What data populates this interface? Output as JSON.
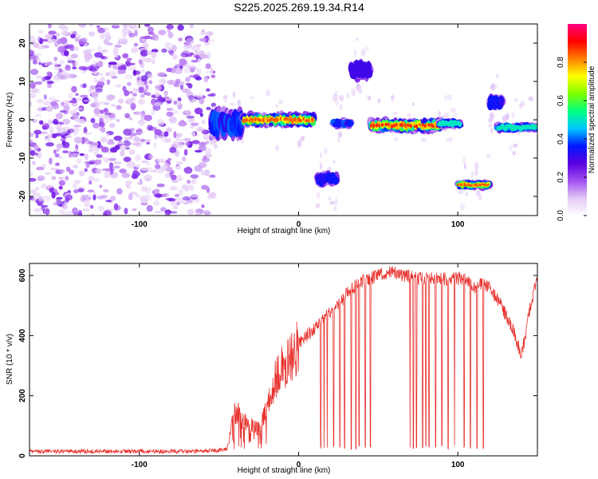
{
  "title": "S225.2025.269.19.34.R14",
  "colors": {
    "snr_line": "#e8302c",
    "axis": "#000000",
    "background": "#ffffff"
  },
  "chart_data": [
    {
      "type": "heatmap",
      "xlabel": "Height of straight line (km)",
      "ylabel": "Frequency (Hz)",
      "xlim": [
        -169,
        150
      ],
      "ylim": [
        -25,
        25
      ],
      "xticks": [
        -100,
        0,
        100
      ],
      "yticks": [
        -20,
        -10,
        0,
        10,
        20
      ],
      "colorbar": {
        "label": "Normalized spectral amplitude",
        "range": [
          0,
          1
        ],
        "ticks": [
          "0.0",
          "0.2",
          "0.4",
          "0.6",
          "0.8"
        ],
        "colors": [
          "#ffffff",
          "#e3c8f5",
          "#a050f0",
          "#5a00e0",
          "#0018ff",
          "#00c8ff",
          "#00ff80",
          "#80ff00",
          "#ffff00",
          "#ff8000",
          "#ff0000",
          "#ff0080"
        ]
      },
      "noise_region": {
        "x": [
          -169,
          -53
        ],
        "freq": [
          -25,
          25
        ]
      },
      "features": [
        {
          "x": [
            -55,
            -35
          ],
          "freq": [
            -4,
            2
          ],
          "peak_amp": 0.4
        },
        {
          "x": [
            -35,
            10
          ],
          "freq": [
            -1.5,
            1.5
          ],
          "peak_amp": 0.85
        },
        {
          "x": [
            12,
            24
          ],
          "freq": [
            -17,
            -14
          ],
          "peak_amp": 0.35
        },
        {
          "x": [
            22,
            33
          ],
          "freq": [
            -2,
            0
          ],
          "peak_amp": 0.4
        },
        {
          "x": [
            33,
            45
          ],
          "freq": [
            11,
            15
          ],
          "peak_amp": 0.3
        },
        {
          "x": [
            45,
            90
          ],
          "freq": [
            -3,
            0
          ],
          "peak_amp": 0.88
        },
        {
          "x": [
            88,
            102
          ],
          "freq": [
            -2,
            0
          ],
          "peak_amp": 0.5
        },
        {
          "x": [
            100,
            120
          ],
          "freq": [
            -18,
            -16
          ],
          "peak_amp": 0.85
        },
        {
          "x": [
            120,
            128
          ],
          "freq": [
            3,
            6
          ],
          "peak_amp": 0.35
        },
        {
          "x": [
            125,
            150
          ],
          "freq": [
            -3,
            -1
          ],
          "peak_amp": 0.5
        }
      ]
    },
    {
      "type": "line",
      "xlabel": "Height of straight line (km)",
      "ylabel": "SNR (10 * v/v)",
      "xlim": [
        -169,
        150
      ],
      "ylim": [
        0,
        640
      ],
      "xticks": [
        -100,
        0,
        100
      ],
      "yticks": [
        0,
        200,
        400,
        600
      ],
      "series": [
        {
          "name": "SNR",
          "x": [
            -169,
            -150,
            -120,
            -100,
            -80,
            -60,
            -45,
            -42,
            -40,
            -35,
            -30,
            -25,
            -20,
            -15,
            -10,
            -5,
            0,
            5,
            10,
            15,
            20,
            25,
            30,
            35,
            40,
            45,
            50,
            55,
            60,
            65,
            70,
            75,
            80,
            85,
            90,
            95,
            100,
            105,
            110,
            115,
            120,
            125,
            130,
            135,
            140,
            145,
            150
          ],
          "values": [
            15,
            15,
            15,
            15,
            15,
            15,
            20,
            100,
            150,
            120,
            100,
            90,
            150,
            250,
            300,
            330,
            370,
            400,
            420,
            450,
            480,
            500,
            540,
            560,
            580,
            590,
            600,
            610,
            610,
            600,
            595,
            590,
            590,
            590,
            590,
            585,
            590,
            590,
            560,
            570,
            560,
            520,
            470,
            420,
            330,
            480,
            600
          ]
        }
      ],
      "dropouts_x": [
        14,
        16,
        18,
        22,
        26,
        29,
        33,
        36,
        38,
        42,
        45,
        70,
        72,
        74,
        78,
        80,
        82,
        86,
        90,
        94,
        98,
        104,
        108,
        112,
        116
      ]
    }
  ]
}
